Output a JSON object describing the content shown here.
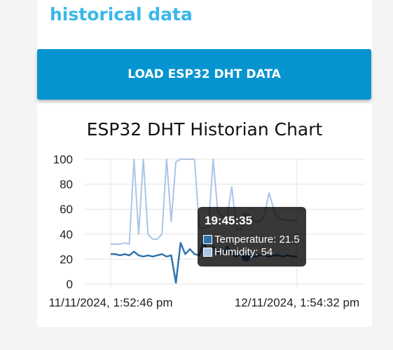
{
  "section": {
    "title": "historical data"
  },
  "button": {
    "label": "LOAD ESP32 DHT DATA"
  },
  "colors": {
    "temperature": "#2f74ad",
    "humidity": "#a9c5e8",
    "accent": "#3ab7e8",
    "button": "#0594cf"
  },
  "chart_data": {
    "type": "line",
    "title": "ESP32 DHT Historian Chart",
    "xlabel": "",
    "ylabel": "",
    "ylim": [
      0,
      100
    ],
    "yticks": [
      "0",
      "20",
      "40",
      "60",
      "80",
      "100"
    ],
    "x_tick_labels": [
      "11/11/2024, 1:52:46 pm",
      "12/11/2024, 1:54:32 pm"
    ],
    "grid": true,
    "series": [
      {
        "name": "Temperature",
        "values": [
          24,
          24,
          23,
          24,
          23,
          26,
          23,
          22,
          23,
          22,
          23,
          24,
          22,
          23,
          1,
          33,
          24,
          28,
          24,
          23,
          34,
          24,
          30,
          25,
          23,
          30,
          24,
          22,
          24,
          21.5,
          22,
          22,
          23,
          23,
          22,
          23,
          23,
          22,
          23,
          22,
          22
        ]
      },
      {
        "name": "Humidity",
        "values": [
          32,
          32,
          32,
          33,
          32,
          100,
          40,
          100,
          40,
          36,
          36,
          40,
          100,
          50,
          98,
          100,
          100,
          100,
          100,
          45,
          45,
          46,
          100,
          58,
          54,
          54,
          78,
          43,
          44,
          54,
          54,
          50,
          50,
          55,
          73,
          60,
          52,
          52,
          51,
          51,
          50
        ]
      }
    ],
    "tooltip": {
      "time": "19:45:35",
      "rows": [
        {
          "label": "Temperature",
          "value": 21.5
        },
        {
          "label": "Humidity",
          "value": 54
        }
      ]
    }
  }
}
